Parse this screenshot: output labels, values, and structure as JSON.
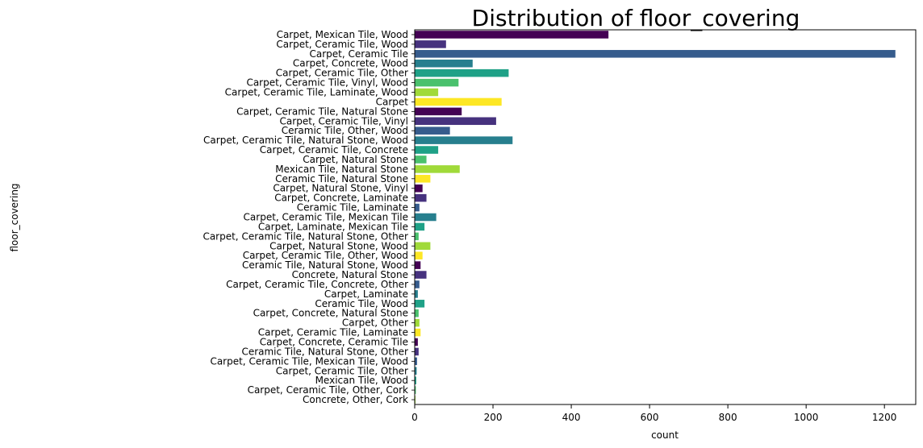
{
  "chart_data": {
    "type": "bar",
    "orientation": "horizontal",
    "title": "Distribution of floor_covering",
    "xlabel": "count",
    "ylabel": "floor_covering",
    "xlim": [
      0,
      1280
    ],
    "xticks": [
      "0",
      "200",
      "400",
      "600",
      "800",
      "1000",
      "1200"
    ],
    "grid": false,
    "legend": "none",
    "palette": "viridis",
    "categories": [
      "Carpet, Mexican Tile, Wood",
      "Carpet, Ceramic Tile, Wood",
      "Carpet, Ceramic Tile",
      "Carpet, Concrete, Wood",
      "Carpet, Ceramic Tile, Other",
      "Carpet, Ceramic Tile, Vinyl, Wood",
      "Carpet, Ceramic Tile, Laminate, Wood",
      "Carpet",
      "Carpet, Ceramic Tile, Natural Stone",
      "Carpet, Ceramic Tile, Vinyl",
      "Ceramic Tile, Other, Wood",
      "Carpet, Ceramic Tile, Natural Stone, Wood",
      "Carpet, Ceramic Tile, Concrete",
      "Carpet, Natural Stone",
      "Mexican Tile, Natural Stone",
      "Ceramic Tile, Natural Stone",
      "Carpet, Natural Stone, Vinyl",
      "Carpet, Concrete, Laminate",
      "Ceramic Tile, Laminate",
      "Carpet, Ceramic Tile, Mexican Tile",
      "Carpet, Laminate, Mexican Tile",
      "Carpet, Ceramic Tile, Natural Stone, Other",
      "Carpet, Natural Stone, Wood",
      "Carpet, Ceramic Tile, Other, Wood",
      "Ceramic Tile, Natural Stone, Wood",
      "Concrete, Natural Stone",
      "Carpet, Ceramic Tile, Concrete, Other",
      "Carpet, Laminate",
      "Ceramic Tile, Wood",
      "Carpet, Concrete, Natural Stone",
      "Carpet, Other",
      "Carpet, Ceramic Tile, Laminate",
      "Carpet, Concrete, Ceramic Tile",
      "Ceramic Tile, Natural Stone, Other",
      "Carpet, Ceramic Tile, Mexican Tile, Wood",
      "Carpet, Ceramic Tile, Other",
      "Mexican Tile, Wood",
      "Carpet, Ceramic Tile, Other, Cork",
      "Concrete, Other, Cork"
    ],
    "values": [
      495,
      80,
      1228,
      148,
      240,
      112,
      60,
      222,
      120,
      208,
      90,
      250,
      60,
      30,
      115,
      40,
      20,
      30,
      12,
      55,
      25,
      10,
      40,
      20,
      15,
      30,
      12,
      8,
      25,
      10,
      12,
      15,
      8,
      10,
      6,
      5,
      4,
      3,
      2
    ]
  }
}
